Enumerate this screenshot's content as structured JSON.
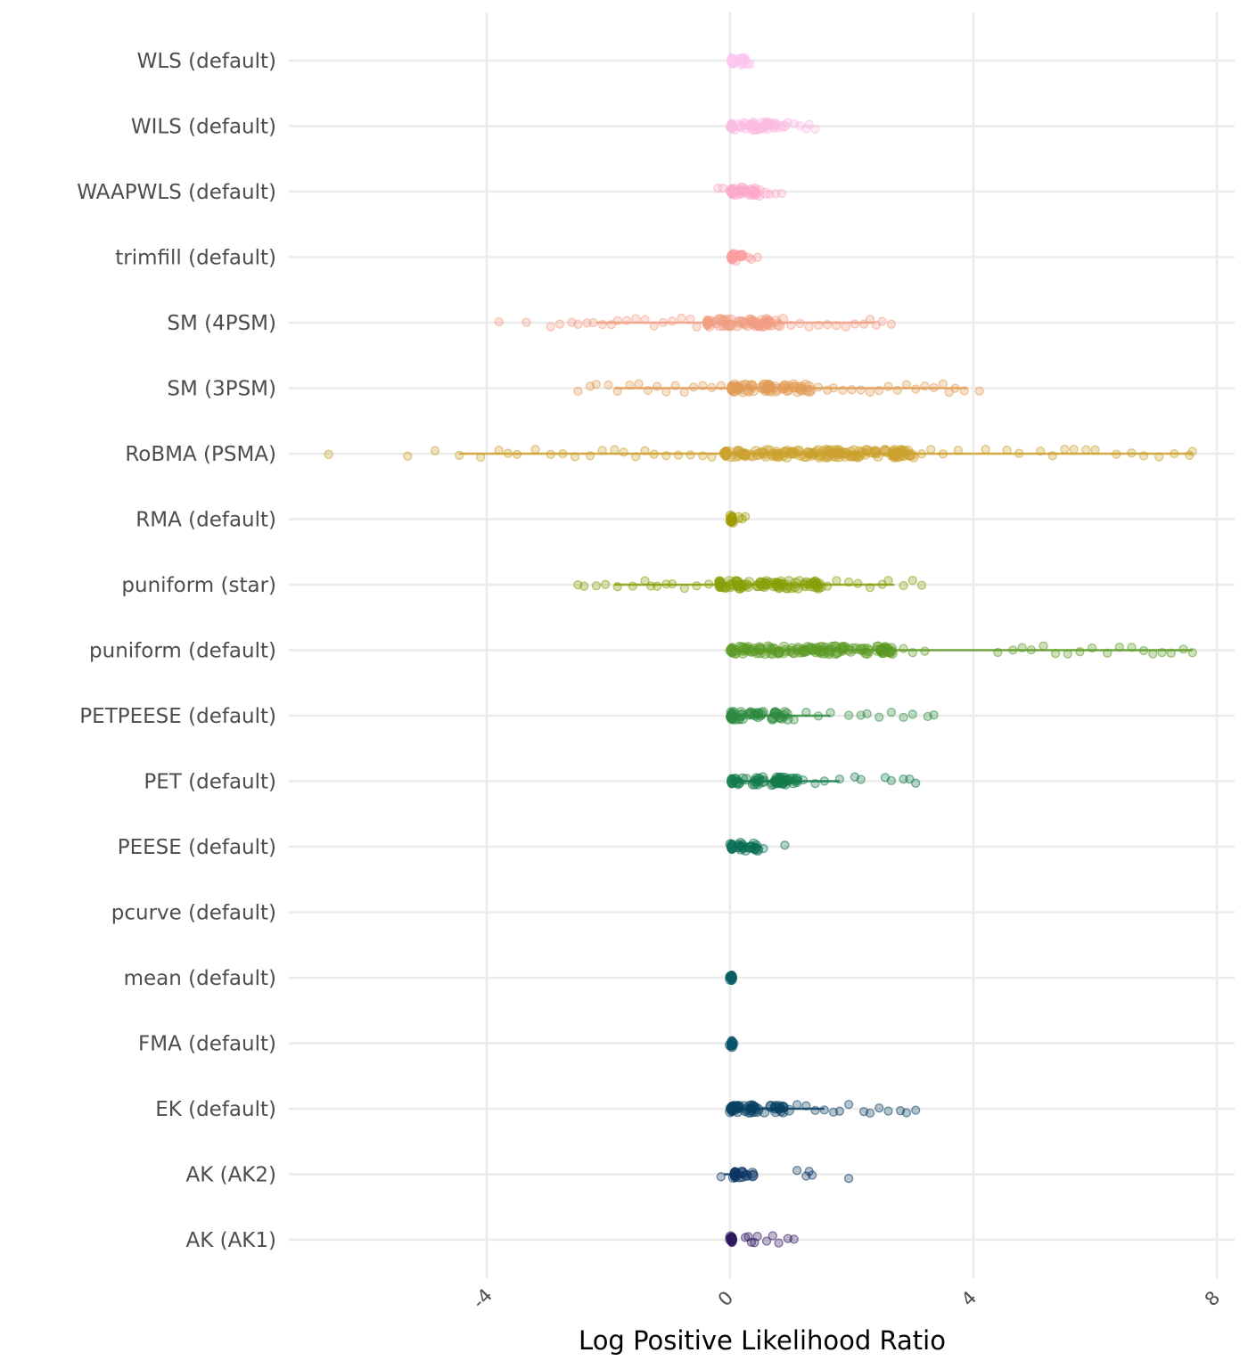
{
  "chart_data": {
    "type": "scatter",
    "title": "",
    "xlabel": "Log Positive Likelihood Ratio",
    "ylabel": "",
    "xlim": [
      -7.3,
      8.3
    ],
    "x_ticks": [
      -4,
      0,
      4,
      8
    ],
    "x_tick_labels": [
      "-4",
      "0",
      "4",
      "8"
    ],
    "grid": true,
    "legend": "none",
    "categories": [
      "WLS (default)",
      "WILS (default)",
      "WAAPWLS (default)",
      "trimfill (default)",
      "SM (4PSM)",
      "SM (3PSM)",
      "RoBMA (PSMA)",
      "RMA (default)",
      "puniform (star)",
      "puniform (default)",
      "PETPEESE (default)",
      "PET (default)",
      "PEESE (default)",
      "pcurve (default)",
      "mean (default)",
      "FMA (default)",
      "EK (default)",
      "AK (AK2)",
      "AK (AK1)"
    ],
    "series": [
      {
        "name": "WLS (default)",
        "color": "#fcc5ef",
        "dense": [
          0.0,
          0.3
        ],
        "range_line": null,
        "outliers": [
          0.3,
          0.33
        ]
      },
      {
        "name": "WILS (default)",
        "color": "#fbbae3",
        "dense": [
          0.0,
          0.9
        ],
        "range_line": null,
        "outliers": [
          0.95,
          1.05,
          1.15,
          1.25,
          1.3,
          1.4
        ]
      },
      {
        "name": "WAAPWLS (default)",
        "color": "#fda9c9",
        "dense": [
          0.0,
          0.6
        ],
        "range_line": null,
        "outliers": [
          -0.2,
          -0.12,
          0.65,
          0.75,
          0.85
        ]
      },
      {
        "name": "trimfill (default)",
        "color": "#fb9b9b",
        "dense": [
          0.0,
          0.2
        ],
        "range_line": null,
        "outliers": [
          0.3,
          0.35,
          0.45
        ]
      },
      {
        "name": "SM (4PSM)",
        "color": "#f29f83",
        "dense": [
          -0.4,
          0.9
        ],
        "range_line": [
          -2.2,
          2.4
        ],
        "outliers": [
          -3.8,
          -3.35,
          -2.95,
          -2.8,
          -2.6,
          -2.5,
          -2.35,
          -2.25,
          -2.1,
          -1.95,
          -1.85,
          -1.7,
          -1.55,
          -1.4,
          -1.25,
          -1.1,
          -0.95,
          -0.8,
          -0.65,
          -0.55,
          1.0,
          1.15,
          1.3,
          1.45,
          1.6,
          1.75,
          1.9,
          2.05,
          2.2,
          2.3,
          2.4,
          2.5,
          2.65
        ]
      },
      {
        "name": "SM (3PSM)",
        "color": "#e19c56",
        "dense": [
          0.0,
          1.35
        ],
        "range_line": [
          -1.9,
          3.9
        ],
        "outliers": [
          -2.5,
          -2.3,
          -2.2,
          -2.0,
          -1.85,
          -1.65,
          -1.5,
          -1.35,
          -1.2,
          -1.05,
          -0.9,
          -0.75,
          -0.6,
          -0.45,
          -0.3,
          -0.15,
          1.45,
          1.6,
          1.7,
          1.85,
          2.0,
          2.15,
          2.3,
          2.45,
          2.6,
          2.75,
          2.9,
          3.05,
          3.2,
          3.35,
          3.5,
          3.6,
          3.7,
          3.85,
          4.1
        ]
      },
      {
        "name": "RoBMA (PSMA)",
        "color": "#cca12d",
        "dense": [
          -0.1,
          3.05
        ],
        "range_line": [
          -4.45,
          7.6
        ],
        "outliers": [
          -6.6,
          -5.3,
          -4.85,
          -4.45,
          -4.1,
          -3.8,
          -3.65,
          -3.5,
          -3.2,
          -2.95,
          -2.75,
          -2.55,
          -2.3,
          -2.1,
          -1.9,
          -1.75,
          -1.55,
          -1.4,
          -1.25,
          -1.05,
          -0.85,
          -0.65,
          -0.45,
          -0.3,
          3.15,
          3.3,
          3.5,
          3.75,
          4.2,
          4.55,
          4.75,
          5.1,
          5.3,
          5.5,
          5.65,
          5.85,
          6.0,
          6.35,
          6.6,
          6.8,
          7.05,
          7.3,
          7.55,
          7.6
        ]
      },
      {
        "name": "RMA (default)",
        "color": "#a09a00",
        "dense": [
          0.0,
          0.15
        ],
        "range_line": null,
        "outliers": [
          0.2,
          0.25
        ]
      },
      {
        "name": "puniform (star)",
        "color": "#86a00a",
        "dense": [
          -0.2,
          1.5
        ],
        "range_line": [
          -1.9,
          2.7
        ],
        "outliers": [
          -2.5,
          -2.4,
          -2.2,
          -2.05,
          -1.85,
          -1.6,
          -1.4,
          -1.3,
          -1.2,
          -1.05,
          -0.95,
          -0.75,
          -0.55,
          -0.35,
          1.6,
          1.75,
          1.95,
          2.1,
          2.3,
          2.5,
          2.6,
          2.85,
          3.0,
          3.15
        ]
      },
      {
        "name": "puniform (default)",
        "color": "#5c9a25",
        "dense": [
          0.0,
          2.75
        ],
        "range_line": [
          0.0,
          7.6
        ],
        "outliers": [
          2.85,
          3.0,
          3.2,
          4.4,
          4.65,
          4.8,
          4.95,
          5.15,
          5.35,
          5.55,
          5.75,
          5.95,
          6.2,
          6.4,
          6.6,
          6.8,
          6.95,
          7.1,
          7.25,
          7.45,
          7.6
        ]
      },
      {
        "name": "PETPEESE (default)",
        "color": "#2d8a3e",
        "dense": [
          0.0,
          0.95
        ],
        "range_line": [
          0.0,
          1.65
        ],
        "outliers": [
          1.05,
          1.25,
          1.45,
          1.65,
          1.95,
          2.15,
          2.25,
          2.45,
          2.65,
          2.85,
          3.0,
          3.25,
          3.35
        ]
      },
      {
        "name": "PET (default)",
        "color": "#137a4a",
        "dense": [
          0.0,
          1.1
        ],
        "range_line": [
          0.0,
          1.8
        ],
        "outliers": [
          1.2,
          1.4,
          1.55,
          1.8,
          2.05,
          2.15,
          2.55,
          2.65,
          2.85,
          2.95,
          3.05
        ]
      },
      {
        "name": "PEESE (default)",
        "color": "#0a6e54",
        "dense": [
          0.0,
          0.5
        ],
        "range_line": null,
        "outliers": [
          0.55,
          0.9
        ]
      },
      {
        "name": "pcurve (default)",
        "color": "#0a6e5c",
        "dense": null,
        "range_line": null,
        "outliers": []
      },
      {
        "name": "mean (default)",
        "color": "#055c63",
        "dense": [
          0.0,
          0.02
        ],
        "range_line": null,
        "outliers": []
      },
      {
        "name": "FMA (default)",
        "color": "#05506a",
        "dense": [
          0.0,
          0.08
        ],
        "range_line": null,
        "outliers": []
      },
      {
        "name": "EK (default)",
        "color": "#073f63",
        "dense": [
          0.0,
          1.0
        ],
        "range_line": [
          0.0,
          1.55
        ],
        "outliers": [
          1.1,
          1.25,
          1.4,
          1.55,
          1.7,
          1.8,
          1.95,
          2.2,
          2.3,
          2.45,
          2.6,
          2.8,
          2.9,
          3.05
        ]
      },
      {
        "name": "AK (AK2)",
        "color": "#0a3563",
        "dense": [
          0.05,
          0.38
        ],
        "range_line": [
          -0.1,
          0.0
        ],
        "outliers": [
          -0.15,
          1.1,
          1.25,
          1.3,
          1.35,
          1.95
        ]
      },
      {
        "name": "AK (AK1)",
        "color": "#2c155c",
        "dense": [
          0.0,
          0.03
        ],
        "range_line": null,
        "outliers": [
          0.25,
          0.3,
          0.35,
          0.4,
          0.45,
          0.6,
          0.7,
          0.8,
          0.95,
          1.05
        ]
      }
    ]
  }
}
